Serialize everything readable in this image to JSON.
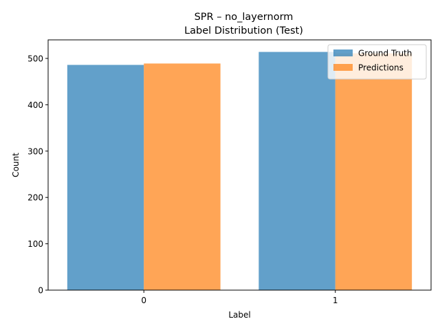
{
  "chart_data": {
    "type": "bar",
    "title": "SPR – no_layernorm",
    "subtitle": "Label Distribution (Test)",
    "xlabel": "Label",
    "ylabel": "Count",
    "categories": [
      "0",
      "1"
    ],
    "ylim": [
      0,
      540
    ],
    "yticks": [
      0,
      100,
      200,
      300,
      400,
      500
    ],
    "grid": false,
    "legend_position": "top-right",
    "series": [
      {
        "name": "Ground Truth",
        "values": [
          486,
          514
        ],
        "color": "#1f77b4",
        "alpha": 0.7
      },
      {
        "name": "Predictions",
        "values": [
          489,
          511
        ],
        "color": "#ff7f0e",
        "alpha": 0.7
      }
    ]
  }
}
